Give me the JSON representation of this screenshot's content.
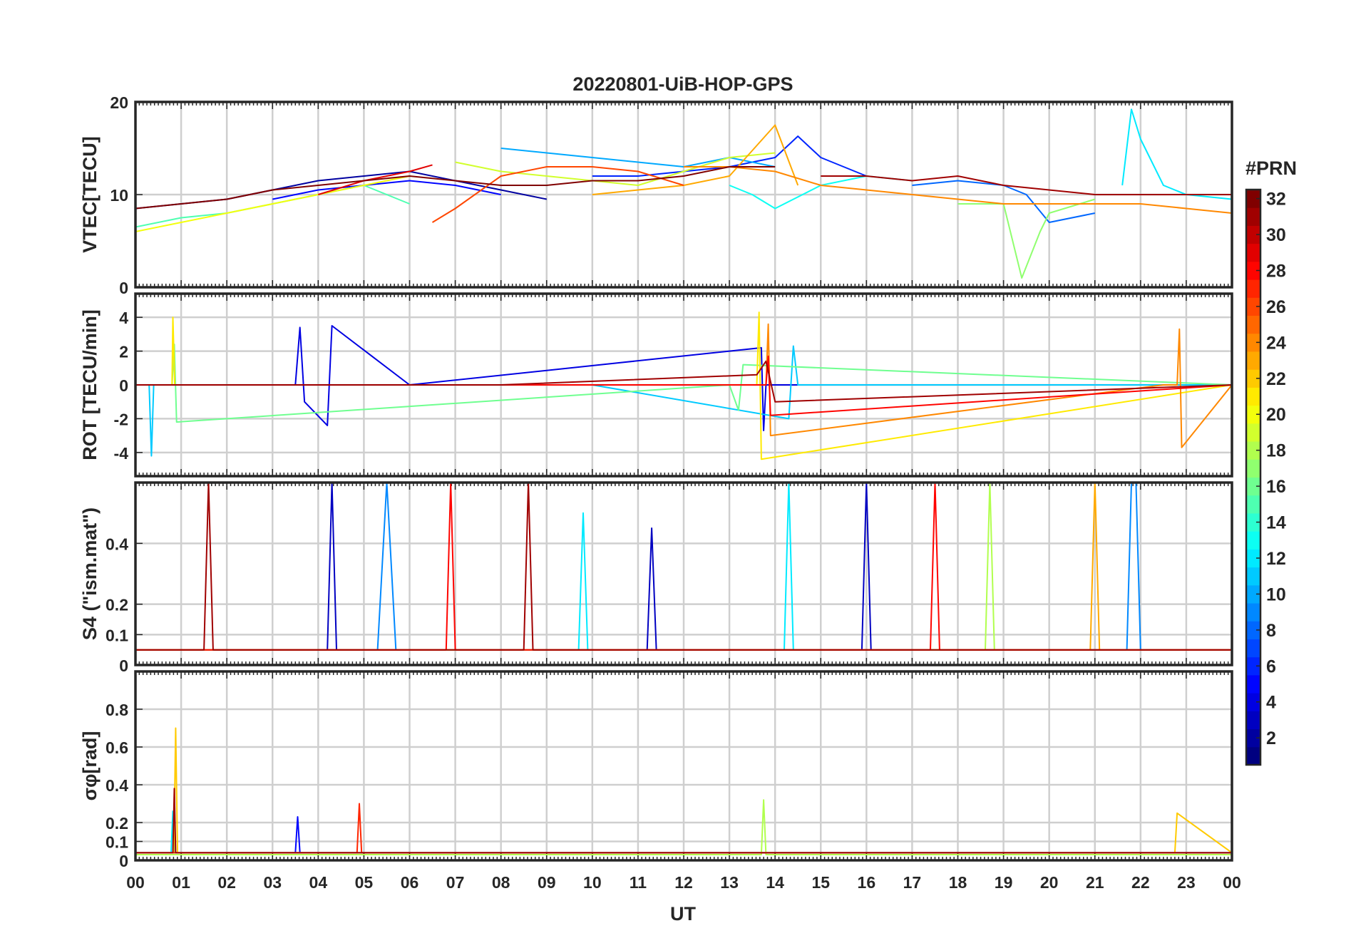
{
  "title": "20220801-UiB-HOP-GPS",
  "colorbar": {
    "label": "#PRN",
    "range": [
      1,
      32
    ],
    "ticks": [
      "2",
      "4",
      "6",
      "8",
      "10",
      "12",
      "14",
      "16",
      "18",
      "20",
      "22",
      "24",
      "26",
      "28",
      "30",
      "32"
    ],
    "colormap": "jet",
    "colormap_stops": [
      "#00007f",
      "#0000ff",
      "#007fff",
      "#00ffff",
      "#7fff7f",
      "#ffff00",
      "#ff7f00",
      "#ff0000",
      "#7f0000"
    ]
  },
  "chart_data": {
    "type": "line",
    "xlabel": "UT",
    "xlim": [
      0,
      24
    ],
    "xticks": [
      "00",
      "01",
      "02",
      "03",
      "04",
      "05",
      "06",
      "07",
      "08",
      "09",
      "10",
      "11",
      "12",
      "13",
      "14",
      "15",
      "16",
      "17",
      "18",
      "19",
      "20",
      "21",
      "22",
      "23",
      "00"
    ],
    "grid": true,
    "panels": [
      {
        "id": "vtec",
        "ylabel": "VTEC[TECU]",
        "ylim": [
          0,
          20
        ],
        "yticks": [
          "0",
          "10",
          "20"
        ],
        "series": [
          {
            "prn": 2,
            "x": [
              0,
              1,
              2,
              3,
              4,
              5,
              6,
              7,
              8,
              9
            ],
            "y": [
              8.5,
              9,
              9.5,
              10.5,
              11.5,
              12,
              12.5,
              11.5,
              10.5,
              9.5
            ]
          },
          {
            "prn": 5,
            "x": [
              3,
              4,
              5,
              6,
              7,
              8
            ],
            "y": [
              9.5,
              10.5,
              11,
              11.5,
              11,
              10
            ]
          },
          {
            "prn": 6,
            "x": [
              10,
              11,
              12,
              13,
              14,
              14.5,
              15,
              16
            ],
            "y": [
              12,
              12,
              12.5,
              13,
              14,
              16.3,
              14,
              12
            ]
          },
          {
            "prn": 8,
            "x": [
              17,
              18,
              19,
              19.5,
              20,
              21
            ],
            "y": [
              11,
              11.5,
              11,
              10,
              7,
              8
            ]
          },
          {
            "prn": 10,
            "x": [
              8,
              9,
              10,
              11,
              12,
              13,
              14
            ],
            "y": [
              15,
              14.5,
              14,
              13.5,
              13,
              14,
              13
            ]
          },
          {
            "prn": 12,
            "x": [
              21.6,
              21.8,
              22,
              22.5,
              23,
              24
            ],
            "y": [
              11,
              19.2,
              16,
              11,
              10,
              9.5
            ]
          },
          {
            "prn": 13,
            "x": [
              13,
              13.5,
              14,
              15,
              16,
              17
            ],
            "y": [
              11,
              10,
              8.5,
              11,
              12,
              11.5
            ]
          },
          {
            "prn": 15,
            "x": [
              0,
              1,
              2,
              3,
              4,
              5,
              6
            ],
            "y": [
              6.5,
              7.5,
              8,
              9,
              10,
              11,
              9
            ]
          },
          {
            "prn": 17,
            "x": [
              18,
              19,
              19.4,
              19.8,
              20,
              21
            ],
            "y": [
              9,
              9,
              1,
              6,
              8,
              9.5
            ]
          },
          {
            "prn": 19,
            "x": [
              7,
              8,
              9,
              10,
              11,
              12,
              13,
              14
            ],
            "y": [
              13.5,
              12.5,
              12,
              11.5,
              11,
              12.5,
              14,
              14.5
            ]
          },
          {
            "prn": 20,
            "x": [
              0,
              1,
              2,
              3,
              4,
              5,
              6
            ],
            "y": [
              6,
              7,
              8,
              9,
              10,
              11,
              12
            ]
          },
          {
            "prn": 23,
            "x": [
              10,
              11,
              12,
              13,
              14,
              14.5
            ],
            "y": [
              10,
              10.5,
              11,
              12,
              17.5,
              11
            ]
          },
          {
            "prn": 24,
            "x": [
              12,
              13,
              14,
              15,
              16,
              17,
              18,
              19,
              20,
              21,
              22,
              23,
              24
            ],
            "y": [
              13,
              13,
              12.5,
              11,
              10.5,
              10,
              9.5,
              9,
              9,
              9,
              9,
              8.5,
              8
            ]
          },
          {
            "prn": 26,
            "x": [
              6.5,
              7,
              8,
              9,
              10,
              11,
              12
            ],
            "y": [
              7,
              8.5,
              12,
              13,
              13,
              12.5,
              11
            ]
          },
          {
            "prn": 29,
            "x": [
              4,
              5,
              6,
              6.5
            ],
            "y": [
              10,
              11.5,
              12.5,
              13.2
            ]
          },
          {
            "prn": 31,
            "x": [
              15,
              16,
              17,
              18,
              19,
              20,
              21,
              22,
              23,
              24
            ],
            "y": [
              12,
              12,
              11.5,
              12,
              11,
              10.5,
              10,
              10,
              10,
              10
            ]
          },
          {
            "prn": 32,
            "x": [
              0,
              1,
              2,
              3,
              4,
              5,
              6,
              7,
              8,
              9,
              10,
              11,
              12,
              13,
              14
            ],
            "y": [
              8.5,
              9,
              9.5,
              10.5,
              11,
              11.5,
              12,
              11.5,
              11,
              11,
              11.5,
              11.5,
              12,
              13,
              13
            ]
          }
        ]
      },
      {
        "id": "rot",
        "ylabel": "ROT [TECU/min]",
        "ylim": [
          -5.4,
          5.4
        ],
        "yticks": [
          "-4",
          "-2",
          "0",
          "2",
          "4"
        ],
        "series": [
          {
            "prn": 4,
            "x": [
              0,
              3.5,
              3.6,
              3.7,
              4.2,
              4.3,
              6,
              13.7,
              13.75,
              13.8,
              16,
              24
            ],
            "y": [
              0,
              0,
              3.4,
              -1,
              -2.4,
              3.5,
              0,
              2.2,
              -2.7,
              0,
              0,
              0
            ]
          },
          {
            "prn": 11,
            "x": [
              0,
              0.3,
              0.35,
              0.4,
              10,
              14.3,
              14.4,
              14.5,
              24
            ],
            "y": [
              0,
              0,
              -4.2,
              0,
              0,
              -2,
              2.3,
              0,
              0
            ]
          },
          {
            "prn": 16,
            "x": [
              0,
              0.8,
              0.85,
              0.9,
              13,
              13.2,
              13.3,
              24
            ],
            "y": [
              0,
              0,
              2.4,
              -2.2,
              0,
              -1.5,
              1.2,
              0
            ]
          },
          {
            "prn": 21,
            "x": [
              0,
              0.8,
              0.82,
              0.86,
              13.6,
              13.65,
              13.7,
              24
            ],
            "y": [
              0,
              0,
              4,
              0,
              0,
              4.3,
              -4.4,
              0
            ]
          },
          {
            "prn": 24,
            "x": [
              0,
              13.8,
              13.85,
              13.9,
              22.5,
              22.8,
              22.85,
              22.9,
              24
            ],
            "y": [
              0,
              0,
              3.6,
              -3,
              0,
              0,
              3.3,
              -3.7,
              0
            ]
          },
          {
            "prn": 28,
            "x": [
              0,
              13.8,
              13.85,
              13.9,
              24
            ],
            "y": [
              0,
              0,
              1.7,
              -1.8,
              0
            ]
          },
          {
            "prn": 31,
            "x": [
              0,
              8,
              13.6,
              13.8,
              14,
              24
            ],
            "y": [
              0,
              0,
              0.6,
              1.4,
              -1,
              0
            ]
          }
        ]
      },
      {
        "id": "s4",
        "ylabel": "S4 (\"ism.mat\")",
        "ylim": [
          0,
          0.6
        ],
        "yticks": [
          "0",
          "0.1",
          "0.2",
          "0.4"
        ],
        "series": [
          {
            "prn": 3,
            "x": [
              0,
              4.2,
              4.3,
              4.4,
              8,
              11.2,
              11.3,
              11.4,
              15.9,
              16,
              16.1,
              24
            ],
            "y": [
              0.05,
              0.05,
              0.6,
              0.05,
              0.05,
              0.05,
              0.45,
              0.05,
              0.05,
              0.6,
              0.05,
              0.05
            ]
          },
          {
            "prn": 9,
            "x": [
              0,
              5.3,
              5.5,
              5.7,
              21.7,
              21.8,
              21.9,
              22,
              24
            ],
            "y": [
              0.05,
              0.05,
              0.6,
              0.05,
              0.05,
              0.6,
              0.6,
              0.05,
              0.05
            ]
          },
          {
            "prn": 12,
            "x": [
              0,
              9.7,
              9.8,
              9.9,
              14.2,
              14.3,
              14.4,
              24
            ],
            "y": [
              0.05,
              0.05,
              0.5,
              0.05,
              0.05,
              0.6,
              0.05,
              0.05
            ]
          },
          {
            "prn": 18,
            "x": [
              0,
              18.6,
              18.7,
              18.8,
              24
            ],
            "y": [
              0.05,
              0.05,
              0.6,
              0.05,
              0.05
            ]
          },
          {
            "prn": 23,
            "x": [
              0,
              20.9,
              21,
              21.1,
              24
            ],
            "y": [
              0.05,
              0.05,
              0.6,
              0.05,
              0.05
            ]
          },
          {
            "prn": 28,
            "x": [
              0,
              6.8,
              6.9,
              7,
              17.4,
              17.5,
              17.6,
              24
            ],
            "y": [
              0.05,
              0.05,
              0.6,
              0.05,
              0.05,
              0.6,
              0.05,
              0.05
            ]
          },
          {
            "prn": 31,
            "x": [
              0,
              1.5,
              1.6,
              1.7,
              8.5,
              8.6,
              8.7,
              24
            ],
            "y": [
              0.05,
              0.05,
              0.6,
              0.05,
              0.05,
              0.6,
              0.05,
              0.05
            ]
          }
        ]
      },
      {
        "id": "sigma_phi",
        "ylabel": "σφ[rad]",
        "ylim": [
          0,
          1
        ],
        "yticks": [
          "0",
          "0.1",
          "0.2",
          "0.4",
          "0.6",
          "0.8"
        ],
        "series": [
          {
            "prn": 5,
            "x": [
              0,
              3.5,
              3.55,
              3.6,
              24
            ],
            "y": [
              0.04,
              0.04,
              0.23,
              0.04,
              0.04
            ]
          },
          {
            "prn": 12,
            "x": [
              0,
              0.78,
              0.82,
              0.86,
              24
            ],
            "y": [
              0.04,
              0.04,
              0.26,
              0.04,
              0.04
            ]
          },
          {
            "prn": 18,
            "x": [
              0,
              13.7,
              13.75,
              13.8,
              24
            ],
            "y": [
              0.03,
              0.03,
              0.32,
              0.03,
              0.03
            ]
          },
          {
            "prn": 22,
            "x": [
              0,
              0.84,
              0.88,
              0.92,
              22.7,
              22.75,
              22.8,
              24
            ],
            "y": [
              0.04,
              0.04,
              0.7,
              0.04,
              0.04,
              0.04,
              0.25,
              0.04
            ]
          },
          {
            "prn": 27,
            "x": [
              0,
              4.85,
              4.9,
              4.95,
              24
            ],
            "y": [
              0.04,
              0.04,
              0.3,
              0.04,
              0.04
            ]
          },
          {
            "prn": 31,
            "x": [
              0,
              0.82,
              0.85,
              0.88,
              24
            ],
            "y": [
              0.04,
              0.04,
              0.38,
              0.04,
              0.04
            ]
          }
        ]
      }
    ]
  }
}
